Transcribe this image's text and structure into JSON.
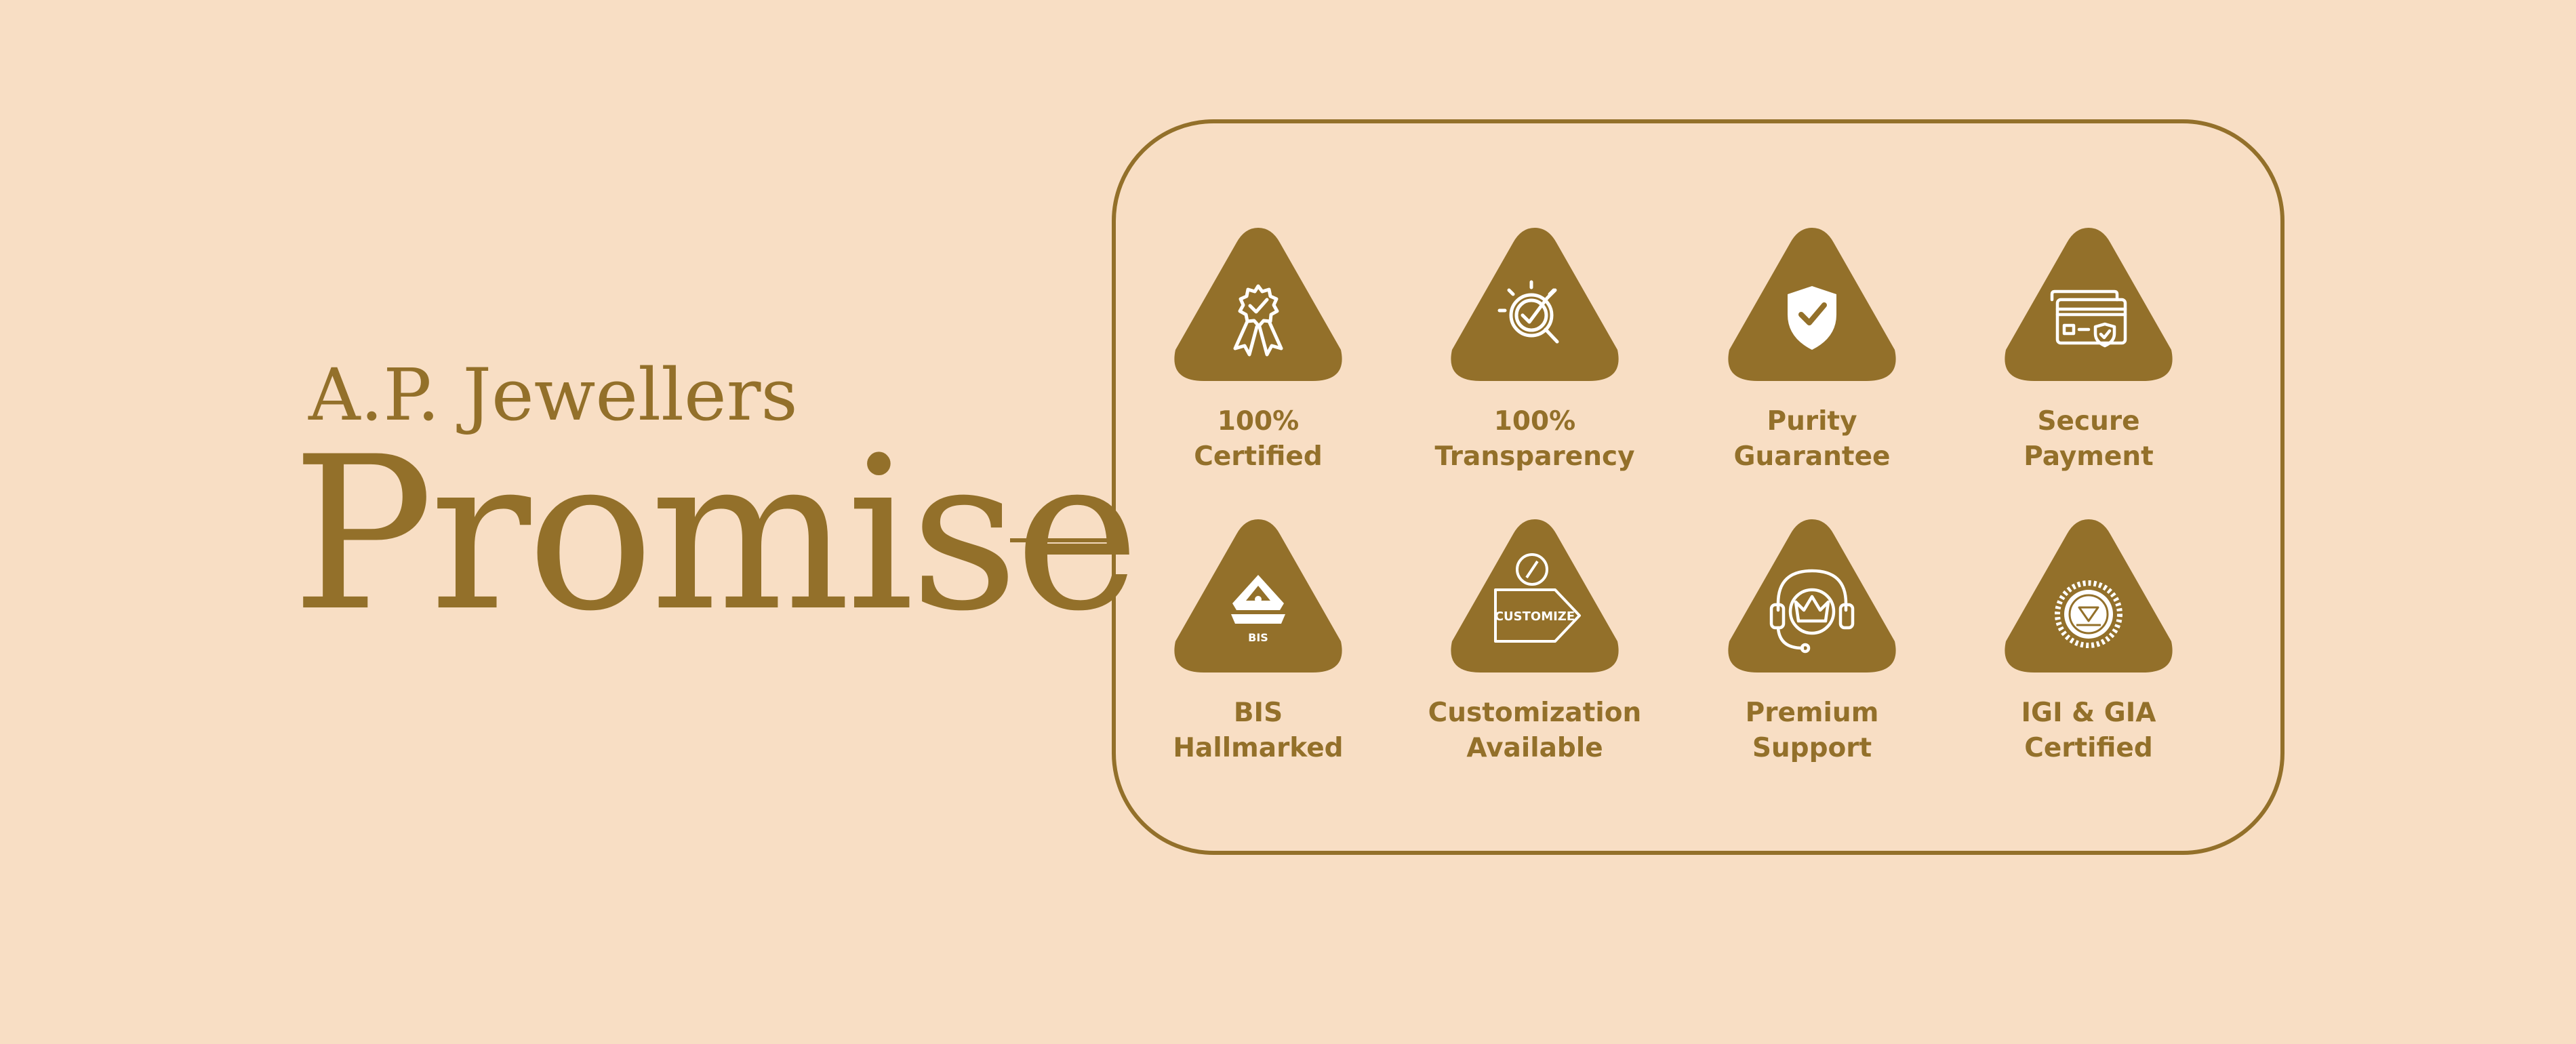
{
  "brand": {
    "name": "A.P. Jewellers",
    "title": "Promise"
  },
  "colors": {
    "background": "#F8DEC4",
    "accent": "#93702A",
    "icon_glyph": "#FFFFFF"
  },
  "features": [
    {
      "line1": "100%",
      "line2": "Certified",
      "icon": "award-ribbon-icon"
    },
    {
      "line1": "100%",
      "line2": "Transparency",
      "icon": "magnifier-check-icon"
    },
    {
      "line1": "Purity",
      "line2": "Guarantee",
      "icon": "shield-check-icon"
    },
    {
      "line1": "Secure",
      "line2": "Payment",
      "icon": "credit-card-shield-icon"
    },
    {
      "line1": "BIS",
      "line2": "Hallmarked",
      "icon": "bis-hallmark-icon",
      "icon_text": "BIS"
    },
    {
      "line1": "Customization",
      "line2": "Available",
      "icon": "customize-tag-icon",
      "icon_text": "CUSTOMIZE"
    },
    {
      "line1": "Premium",
      "line2": "Support",
      "icon": "headset-crown-icon"
    },
    {
      "line1": "IGI & GIA",
      "line2": "Certified",
      "icon": "certification-seal-icon"
    }
  ]
}
